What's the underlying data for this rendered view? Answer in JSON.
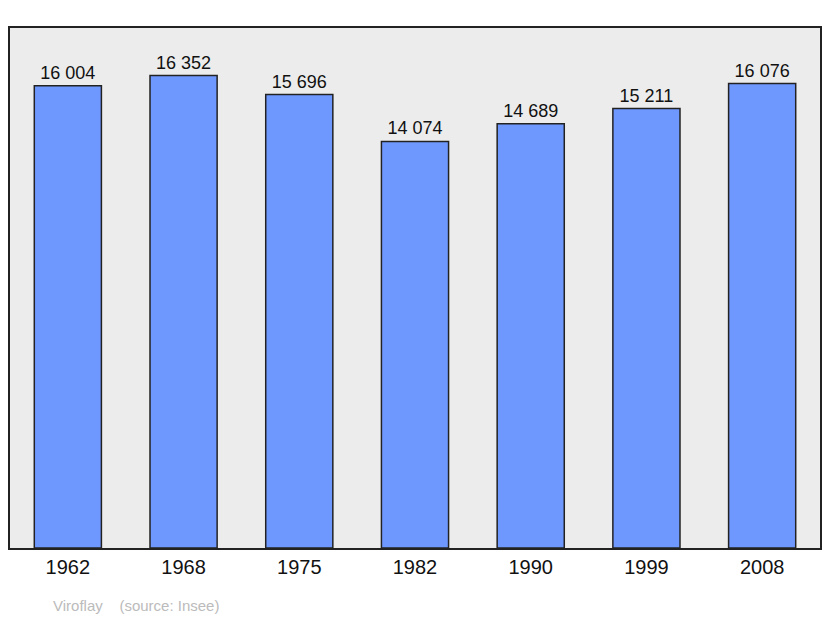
{
  "chart_data": {
    "type": "bar",
    "categories": [
      "1962",
      "1968",
      "1975",
      "1982",
      "1990",
      "1999",
      "2008"
    ],
    "values": [
      16004,
      16352,
      15696,
      14074,
      14689,
      15211,
      16076
    ],
    "value_labels": [
      "16 004",
      "16 352",
      "15 696",
      "14 074",
      "14 689",
      "15 211",
      "16 076"
    ],
    "color": "#6f98ff",
    "ylim": [
      0,
      18000
    ],
    "grid": false,
    "data_labels": true,
    "tick_labels": "x",
    "annotations": [
      "Viroflay    (source: Insee)"
    ]
  }
}
